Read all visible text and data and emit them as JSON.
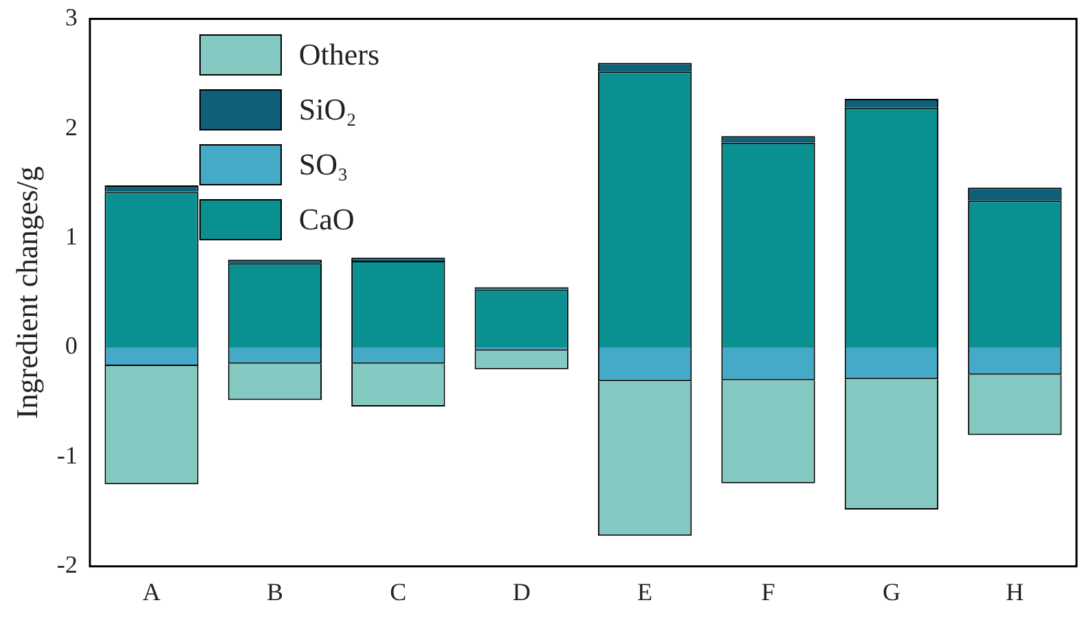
{
  "chart_data": {
    "type": "bar",
    "ylabel": "Ingredient changes/g",
    "categories": [
      "A",
      "B",
      "C",
      "D",
      "E",
      "F",
      "G",
      "H"
    ],
    "stacked": true,
    "ylim": [
      -2,
      3
    ],
    "yticks": [
      -2,
      -1,
      0,
      1,
      2,
      3
    ],
    "grid": false,
    "legend": "top left",
    "series": [
      {
        "name": "CaO",
        "color": "#0a9090",
        "values": [
          1.42,
          0.77,
          0.79,
          0.53,
          2.52,
          1.87,
          2.19,
          1.34
        ]
      },
      {
        "name": "SO₃",
        "color": "#45a9c8",
        "values": [
          -0.17,
          -0.15,
          -0.15,
          -0.03,
          -0.31,
          -0.3,
          -0.29,
          -0.25
        ]
      },
      {
        "name": "SiO₂",
        "color": "#0e5f78",
        "values": [
          0.06,
          0.03,
          0.03,
          0.02,
          0.08,
          0.06,
          0.08,
          0.12
        ]
      },
      {
        "name": "Others",
        "color": "#84c9c1",
        "values": [
          -1.08,
          -0.33,
          -0.39,
          -0.17,
          -1.41,
          -0.94,
          -1.19,
          -0.55
        ]
      }
    ]
  }
}
